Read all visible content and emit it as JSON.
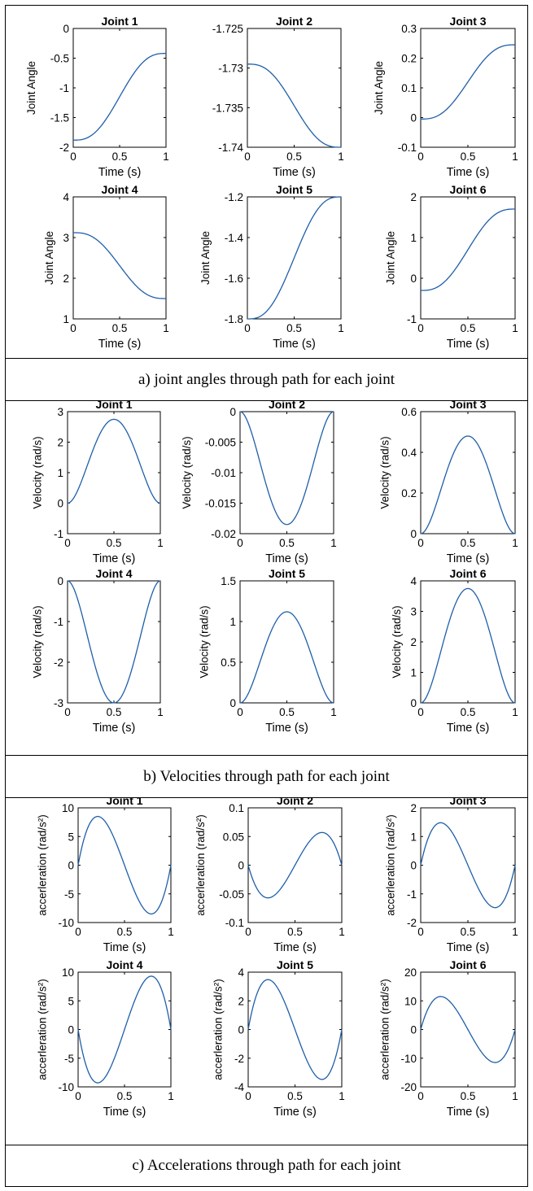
{
  "figure": {
    "captions": [
      "a) joint angles through path for each joint",
      "b) Velocities through path for each joint",
      "c) Accelerations through path for each joint"
    ]
  },
  "chart_data": [
    {
      "type": "line",
      "panel": "a",
      "title": "Joint 1",
      "xlabel": "Time (s)",
      "ylabel": "Joint Angle",
      "xlim": [
        0,
        1
      ],
      "ylim": [
        -2,
        0
      ],
      "xticks": [
        0,
        0.5,
        1
      ],
      "yticks": [
        0,
        -0.5,
        -1,
        -1.5,
        -2
      ],
      "ytick_labels": [
        "0",
        "-0.5",
        "-1",
        "-1.5",
        "-2"
      ],
      "series": [
        {
          "kind": "angle",
          "start": -1.88,
          "end": -0.42
        }
      ],
      "grid": false
    },
    {
      "type": "line",
      "panel": "a",
      "title": "Joint 2",
      "xlabel": "Time (s)",
      "ylabel": "",
      "xlim": [
        0,
        1
      ],
      "ylim": [
        -1.74,
        -1.725
      ],
      "xticks": [
        0,
        0.5,
        1
      ],
      "yticks": [
        -1.725,
        -1.73,
        -1.735,
        -1.74
      ],
      "ytick_labels": [
        "-1.725",
        "-1.73",
        "-1.735",
        "-1.74"
      ],
      "series": [
        {
          "kind": "angle",
          "start": -1.7295,
          "end": -1.74
        }
      ],
      "grid": false
    },
    {
      "type": "line",
      "panel": "a",
      "title": "Joint 3",
      "xlabel": "Time (s)",
      "ylabel": "Joint Angle",
      "xlim": [
        0,
        1
      ],
      "ylim": [
        -0.1,
        0.3
      ],
      "xticks": [
        0,
        0.5,
        1
      ],
      "yticks": [
        0.3,
        0.2,
        0.1,
        0,
        -0.1
      ],
      "ytick_labels": [
        "0.3",
        "0.2",
        "0.1",
        "0",
        "-0.1"
      ],
      "series": [
        {
          "kind": "angle",
          "start": -0.005,
          "end": 0.245
        }
      ],
      "grid": false
    },
    {
      "type": "line",
      "panel": "a",
      "title": "Joint 4",
      "xlabel": "Time (s)",
      "ylabel": "Joint Angle",
      "xlim": [
        0,
        1
      ],
      "ylim": [
        1,
        4
      ],
      "xticks": [
        0,
        0.5,
        1
      ],
      "yticks": [
        4,
        3,
        2,
        1
      ],
      "ytick_labels": [
        "4",
        "3",
        "2",
        "1"
      ],
      "series": [
        {
          "kind": "angle",
          "start": 3.12,
          "end": 1.5
        }
      ],
      "grid": false
    },
    {
      "type": "line",
      "panel": "a",
      "title": "Joint 5",
      "xlabel": "Time (s)",
      "ylabel": "Joint Angle",
      "xlim": [
        0,
        1
      ],
      "ylim": [
        -1.8,
        -1.2
      ],
      "xticks": [
        0,
        0.5,
        1
      ],
      "yticks": [
        -1.2,
        -1.4,
        -1.6,
        -1.8
      ],
      "ytick_labels": [
        "-1.2",
        "-1.4",
        "-1.6",
        "-1.8"
      ],
      "series": [
        {
          "kind": "angle",
          "start": -1.8,
          "end": -1.2
        }
      ],
      "grid": false
    },
    {
      "type": "line",
      "panel": "a",
      "title": "Joint 6",
      "xlabel": "Time (s)",
      "ylabel": "Joint Angle",
      "xlim": [
        0,
        1
      ],
      "ylim": [
        -1,
        2
      ],
      "xticks": [
        0,
        0.5,
        1
      ],
      "yticks": [
        2,
        1,
        0,
        -1
      ],
      "ytick_labels": [
        "2",
        "1",
        "0",
        "-1"
      ],
      "series": [
        {
          "kind": "angle",
          "start": -0.3,
          "end": 1.7
        }
      ],
      "grid": false
    },
    {
      "type": "line",
      "panel": "b",
      "title": "Joint 1",
      "xlabel": "Time (s)",
      "ylabel": "Velocity (rad/s)",
      "xlim": [
        0,
        1
      ],
      "ylim": [
        -1,
        3
      ],
      "xticks": [
        0,
        0.5,
        1
      ],
      "yticks": [
        3,
        2,
        1,
        0,
        -1
      ],
      "ytick_labels": [
        "3",
        "2",
        "1",
        "0",
        "-1"
      ],
      "series": [
        {
          "kind": "velocity",
          "peak": 2.75
        }
      ],
      "grid": false
    },
    {
      "type": "line",
      "panel": "b",
      "title": "Joint 2",
      "xlabel": "Time (s)",
      "ylabel": "Velocity (rad/s)",
      "xlim": [
        0,
        1
      ],
      "ylim": [
        -0.02,
        0
      ],
      "xticks": [
        0,
        0.5,
        1
      ],
      "yticks": [
        0,
        -0.005,
        -0.01,
        -0.015,
        -0.02
      ],
      "ytick_labels": [
        "0",
        "-0.005",
        "-0.01",
        "-0.015",
        "-0.02"
      ],
      "series": [
        {
          "kind": "velocity",
          "peak": -0.0185
        }
      ],
      "grid": false
    },
    {
      "type": "line",
      "panel": "b",
      "title": "Joint 3",
      "xlabel": "Time (s)",
      "ylabel": "Velocity (rad/s)",
      "xlim": [
        0,
        1
      ],
      "ylim": [
        0,
        0.6
      ],
      "xticks": [
        0,
        0.5,
        1
      ],
      "yticks": [
        0.6,
        0.4,
        0.2,
        0
      ],
      "ytick_labels": [
        "0.6",
        "0.4",
        "0.2",
        "0"
      ],
      "series": [
        {
          "kind": "velocity",
          "peak": 0.48
        }
      ],
      "grid": false
    },
    {
      "type": "line",
      "panel": "b",
      "title": "Joint 4",
      "xlabel": "Time (s)",
      "ylabel": "Velocity (rad/s)",
      "xlim": [
        0,
        1
      ],
      "ylim": [
        -3,
        0
      ],
      "xticks": [
        0,
        0.5,
        1
      ],
      "yticks": [
        0,
        -1,
        -2,
        -3
      ],
      "ytick_labels": [
        "0",
        "-1",
        "-2",
        "-3"
      ],
      "series": [
        {
          "kind": "velocity",
          "peak": -3.0
        }
      ],
      "grid": false
    },
    {
      "type": "line",
      "panel": "b",
      "title": "Joint 5",
      "xlabel": "Time (s)",
      "ylabel": "Velocity (rad/s)",
      "xlim": [
        0,
        1
      ],
      "ylim": [
        0,
        1.5
      ],
      "xticks": [
        0,
        0.5,
        1
      ],
      "yticks": [
        1.5,
        1,
        0.5,
        0
      ],
      "ytick_labels": [
        "1.5",
        "1",
        "0.5",
        "0"
      ],
      "series": [
        {
          "kind": "velocity",
          "peak": 1.12
        }
      ],
      "grid": false
    },
    {
      "type": "line",
      "panel": "b",
      "title": "Joint 6",
      "xlabel": "Time (s)",
      "ylabel": "Velocity (rad/s)",
      "xlim": [
        0,
        1
      ],
      "ylim": [
        0,
        4
      ],
      "xticks": [
        0,
        0.5,
        1
      ],
      "yticks": [
        4,
        3,
        2,
        1,
        0
      ],
      "ytick_labels": [
        "4",
        "3",
        "2",
        "1",
        "0"
      ],
      "series": [
        {
          "kind": "velocity",
          "peak": 3.75
        }
      ],
      "grid": false
    },
    {
      "type": "line",
      "panel": "c",
      "title": "Joint 1",
      "xlabel": "Time (s)",
      "ylabel": "accerleration (rad/s²)",
      "xlim": [
        0,
        1
      ],
      "ylim": [
        -10,
        10
      ],
      "xticks": [
        0,
        0.5,
        1
      ],
      "yticks": [
        10,
        5,
        0,
        -5,
        -10
      ],
      "ytick_labels": [
        "10",
        "5",
        "0",
        "-5",
        "-10"
      ],
      "series": [
        {
          "kind": "acceleration",
          "peak": 8.5
        }
      ],
      "grid": false
    },
    {
      "type": "line",
      "panel": "c",
      "title": "Joint 2",
      "xlabel": "Time (s)",
      "ylabel": "accerleration (rad/s²)",
      "xlim": [
        0,
        1
      ],
      "ylim": [
        -0.1,
        0.1
      ],
      "xticks": [
        0,
        0.5,
        1
      ],
      "yticks": [
        0.1,
        0.05,
        0,
        -0.05,
        -0.1
      ],
      "ytick_labels": [
        "0.1",
        "0.05",
        "0",
        "-0.05",
        "-0.1"
      ],
      "series": [
        {
          "kind": "acceleration",
          "peak": -0.057
        }
      ],
      "grid": false
    },
    {
      "type": "line",
      "panel": "c",
      "title": "Joint 3",
      "xlabel": "Time (s)",
      "ylabel": "accerleration (rad/s²)",
      "xlim": [
        0,
        1
      ],
      "ylim": [
        -2,
        2
      ],
      "xticks": [
        0,
        0.5,
        1
      ],
      "yticks": [
        2,
        1,
        0,
        -1,
        -2
      ],
      "ytick_labels": [
        "2",
        "1",
        "0",
        "-1",
        "-2"
      ],
      "series": [
        {
          "kind": "acceleration",
          "peak": 1.48
        }
      ],
      "grid": false
    },
    {
      "type": "line",
      "panel": "c",
      "title": "Joint 4",
      "xlabel": "Time (s)",
      "ylabel": "accerleration (rad/s²)",
      "xlim": [
        0,
        1
      ],
      "ylim": [
        -10,
        10
      ],
      "xticks": [
        0,
        0.5,
        1
      ],
      "yticks": [
        10,
        5,
        0,
        -5,
        -10
      ],
      "ytick_labels": [
        "10",
        "5",
        "0",
        "-5",
        "-10"
      ],
      "series": [
        {
          "kind": "acceleration",
          "peak": -9.3
        }
      ],
      "grid": false
    },
    {
      "type": "line",
      "panel": "c",
      "title": "Joint 5",
      "xlabel": "Time (s)",
      "ylabel": "accerleration (rad/s²)",
      "xlim": [
        0,
        1
      ],
      "ylim": [
        -4,
        4
      ],
      "xticks": [
        0,
        0.5,
        1
      ],
      "yticks": [
        4,
        2,
        0,
        -2,
        -4
      ],
      "ytick_labels": [
        "4",
        "2",
        "0",
        "-2",
        "-4"
      ],
      "series": [
        {
          "kind": "acceleration",
          "peak": 3.48
        }
      ],
      "grid": false
    },
    {
      "type": "line",
      "panel": "c",
      "title": "Joint 6",
      "xlabel": "Time (s)",
      "ylabel": "accerleration (rad/s²)",
      "xlim": [
        0,
        1
      ],
      "ylim": [
        -20,
        20
      ],
      "xticks": [
        0,
        0.5,
        1
      ],
      "yticks": [
        20,
        10,
        0,
        -10,
        -20
      ],
      "ytick_labels": [
        "20",
        "10",
        "0",
        "-10",
        "-20"
      ],
      "series": [
        {
          "kind": "acceleration",
          "peak": 11.5
        }
      ],
      "grid": false
    }
  ],
  "style": {
    "line_color": "#1f5fa8",
    "axis_color": "#000000"
  }
}
